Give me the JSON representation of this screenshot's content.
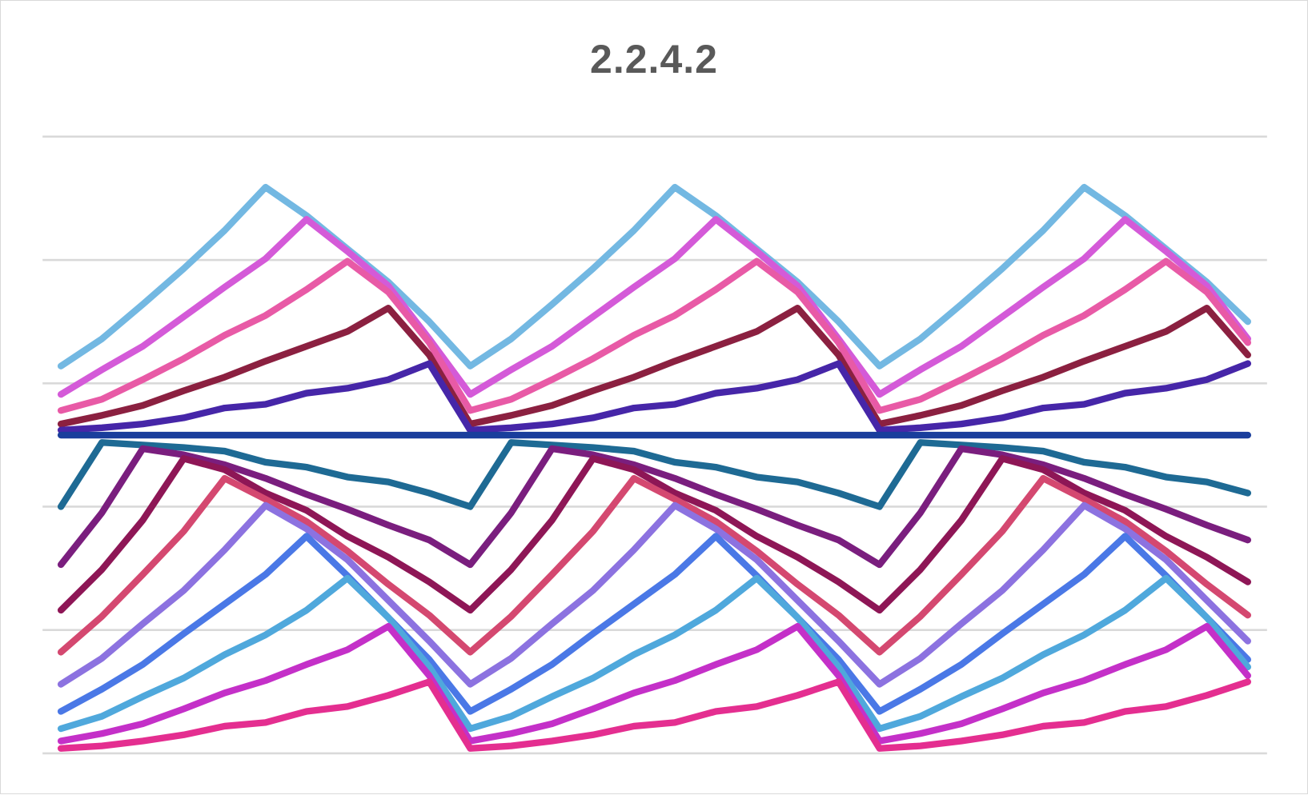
{
  "chart_data": {
    "type": "line",
    "title": "2.2.4.2",
    "xlabel": "",
    "ylabel": "",
    "x": [
      1,
      2,
      3,
      4,
      5,
      6,
      7,
      8,
      9,
      10,
      11,
      12,
      13,
      14,
      15,
      16,
      17,
      18,
      19,
      20,
      21,
      22,
      23,
      24,
      25,
      26,
      27,
      28,
      29,
      30
    ],
    "ylim": [
      0,
      5
    ],
    "gridlines_y": [
      0,
      1,
      2,
      3,
      4,
      5
    ],
    "grid": true,
    "legend": "none",
    "series": [
      {
        "color": "#73b8e2",
        "values": [
          3.14,
          3.36,
          3.64,
          3.93,
          4.24,
          4.59,
          4.36,
          4.09,
          3.82,
          3.5,
          3.14,
          3.36,
          3.64,
          3.93,
          4.24,
          4.59,
          4.36,
          4.09,
          3.82,
          3.5,
          3.14,
          3.36,
          3.64,
          3.93,
          4.24,
          4.59,
          4.36,
          4.09,
          3.82,
          3.5
        ]
      },
      {
        "color": "#d45ad8",
        "values": [
          2.91,
          3.11,
          3.3,
          3.54,
          3.78,
          4.01,
          4.33,
          4.07,
          3.79,
          3.36,
          2.91,
          3.11,
          3.3,
          3.54,
          3.78,
          4.01,
          4.33,
          4.07,
          3.79,
          3.36,
          2.91,
          3.11,
          3.3,
          3.54,
          3.78,
          4.01,
          4.33,
          4.07,
          3.79,
          3.36
        ]
      },
      {
        "color": "#e85aa6",
        "values": [
          2.78,
          2.87,
          3.03,
          3.2,
          3.39,
          3.55,
          3.76,
          3.99,
          3.74,
          3.33,
          2.78,
          2.87,
          3.03,
          3.2,
          3.39,
          3.55,
          3.76,
          3.99,
          3.74,
          3.33,
          2.78,
          2.87,
          3.03,
          3.2,
          3.39,
          3.55,
          3.76,
          3.99,
          3.74,
          3.33
        ]
      },
      {
        "color": "#8b2040",
        "values": [
          2.67,
          2.74,
          2.82,
          2.94,
          3.05,
          3.18,
          3.3,
          3.42,
          3.61,
          3.23,
          2.67,
          2.74,
          2.82,
          2.94,
          3.05,
          3.18,
          3.3,
          3.42,
          3.61,
          3.23,
          2.67,
          2.74,
          2.82,
          2.94,
          3.05,
          3.18,
          3.3,
          3.42,
          3.61,
          3.23
        ]
      },
      {
        "color": "#4626a8",
        "values": [
          2.62,
          2.64,
          2.67,
          2.72,
          2.8,
          2.83,
          2.92,
          2.96,
          3.03,
          3.16,
          2.62,
          2.64,
          2.67,
          2.72,
          2.8,
          2.83,
          2.92,
          2.96,
          3.03,
          3.16,
          2.62,
          2.64,
          2.67,
          2.72,
          2.8,
          2.83,
          2.92,
          2.96,
          3.03,
          3.16
        ]
      },
      {
        "color": "#1e6a94",
        "values": [
          2.0,
          2.52,
          2.5,
          2.48,
          2.45,
          2.36,
          2.32,
          2.24,
          2.2,
          2.11,
          2.0,
          2.52,
          2.5,
          2.48,
          2.45,
          2.36,
          2.32,
          2.24,
          2.2,
          2.11,
          2.0,
          2.52,
          2.5,
          2.48,
          2.45,
          2.36,
          2.32,
          2.24,
          2.2,
          2.11
        ]
      },
      {
        "color": "#7a1e7e",
        "values": [
          1.53,
          1.95,
          2.47,
          2.42,
          2.34,
          2.23,
          2.1,
          1.98,
          1.85,
          1.73,
          1.53,
          1.95,
          2.47,
          2.42,
          2.34,
          2.23,
          2.1,
          1.98,
          1.85,
          1.73,
          1.53,
          1.95,
          2.47,
          2.42,
          2.34,
          2.23,
          2.1,
          1.98,
          1.85,
          1.73
        ]
      },
      {
        "color": "#8e1656",
        "values": [
          1.16,
          1.49,
          1.89,
          2.39,
          2.3,
          2.11,
          1.97,
          1.76,
          1.59,
          1.39,
          1.16,
          1.49,
          1.89,
          2.39,
          2.3,
          2.11,
          1.97,
          1.76,
          1.59,
          1.39,
          1.16,
          1.49,
          1.89,
          2.39,
          2.3,
          2.11,
          1.97,
          1.76,
          1.59,
          1.39
        ]
      },
      {
        "color": "#d44870",
        "values": [
          0.82,
          1.11,
          1.45,
          1.8,
          2.23,
          2.06,
          1.88,
          1.64,
          1.37,
          1.12,
          0.82,
          1.11,
          1.45,
          1.8,
          2.23,
          2.06,
          1.88,
          1.64,
          1.37,
          1.12,
          0.82,
          1.11,
          1.45,
          1.8,
          2.23,
          2.06,
          1.88,
          1.64,
          1.37,
          1.12
        ]
      },
      {
        "color": "#8c72e0",
        "values": [
          0.56,
          0.77,
          1.05,
          1.32,
          1.65,
          2.01,
          1.82,
          1.57,
          1.24,
          0.91,
          0.56,
          0.77,
          1.05,
          1.32,
          1.65,
          2.01,
          1.82,
          1.57,
          1.24,
          0.91,
          0.56,
          0.77,
          1.05,
          1.32,
          1.65,
          2.01,
          1.82,
          1.57,
          1.24,
          0.91
        ]
      },
      {
        "color": "#4a78e6",
        "values": [
          0.34,
          0.52,
          0.72,
          0.97,
          1.21,
          1.45,
          1.76,
          1.44,
          1.1,
          0.76,
          0.34,
          0.52,
          0.72,
          0.97,
          1.21,
          1.45,
          1.76,
          1.44,
          1.1,
          0.76,
          0.34,
          0.52,
          0.72,
          0.97,
          1.21,
          1.45,
          1.76,
          1.44,
          1.1,
          0.76
        ]
      },
      {
        "color": "#4fa8dc",
        "values": [
          0.2,
          0.3,
          0.46,
          0.61,
          0.8,
          0.96,
          1.16,
          1.42,
          1.1,
          0.7,
          0.2,
          0.3,
          0.46,
          0.61,
          0.8,
          0.96,
          1.16,
          1.42,
          1.1,
          0.7,
          0.2,
          0.3,
          0.46,
          0.61,
          0.8,
          0.96,
          1.16,
          1.42,
          1.1,
          0.7
        ]
      },
      {
        "color": "#c430c8",
        "values": [
          0.1,
          0.16,
          0.24,
          0.36,
          0.49,
          0.59,
          0.72,
          0.84,
          1.03,
          0.63,
          0.1,
          0.16,
          0.24,
          0.36,
          0.49,
          0.59,
          0.72,
          0.84,
          1.03,
          0.63,
          0.1,
          0.16,
          0.24,
          0.36,
          0.49,
          0.59,
          0.72,
          0.84,
          1.03,
          0.63
        ]
      },
      {
        "color": "#e42e90",
        "values": [
          0.04,
          0.06,
          0.1,
          0.15,
          0.22,
          0.25,
          0.34,
          0.38,
          0.47,
          0.58,
          0.04,
          0.06,
          0.1,
          0.15,
          0.22,
          0.25,
          0.34,
          0.38,
          0.47,
          0.58,
          0.04,
          0.06,
          0.1,
          0.15,
          0.22,
          0.25,
          0.34,
          0.38,
          0.47,
          0.58
        ]
      },
      {
        "color": "#1a3e9c",
        "values": [
          2.58,
          2.58,
          2.58,
          2.58,
          2.58,
          2.58,
          2.58,
          2.58,
          2.58,
          2.58,
          2.58,
          2.58,
          2.58,
          2.58,
          2.58,
          2.58,
          2.58,
          2.58,
          2.58,
          2.58,
          2.58,
          2.58,
          2.58,
          2.58,
          2.58,
          2.58,
          2.58,
          2.58,
          2.58,
          2.58
        ]
      }
    ]
  }
}
